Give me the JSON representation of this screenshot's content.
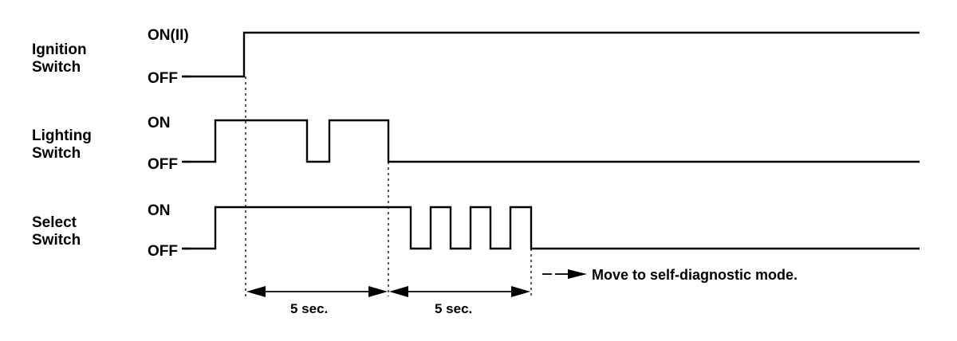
{
  "signals": [
    {
      "name_line1": "Ignition",
      "name_line2": "Switch",
      "high_label": "ON(II)",
      "low_label": "OFF"
    },
    {
      "name_line1": "Lighting",
      "name_line2": "Switch",
      "high_label": "ON",
      "low_label": "OFF"
    },
    {
      "name_line1": "Select",
      "name_line2": "Switch",
      "high_label": "ON",
      "low_label": "OFF"
    }
  ],
  "intervals": [
    {
      "label": "5 sec."
    },
    {
      "label": "5 sec."
    }
  ],
  "result_note": "Move to self-diagnostic mode.",
  "colors": {
    "line": "#000000",
    "background": "#ffffff"
  }
}
